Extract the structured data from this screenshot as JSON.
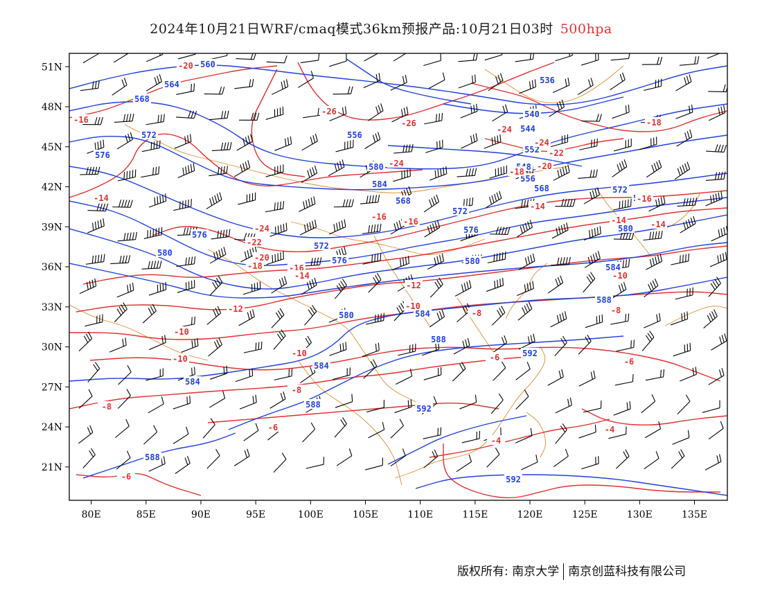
{
  "title": {
    "main": "2024年10月21日WRF/cmaq模式36km预报产品:10月21日03时",
    "level": "500hpa"
  },
  "colors": {
    "height_contour": "#1f3fdd",
    "temperature_contour": "#e03030",
    "boundary": "#e08a2a",
    "wind_barb": "#000000",
    "frame": "#000000"
  },
  "axes": {
    "lon_range": [
      78,
      138
    ],
    "lat_range": [
      18.5,
      52
    ],
    "x_ticks": [
      "80E",
      "85E",
      "90E",
      "95E",
      "100E",
      "105E",
      "110E",
      "115E",
      "120E",
      "125E",
      "130E",
      "135E"
    ],
    "y_ticks": [
      "51N",
      "48N",
      "45N",
      "42N",
      "39N",
      "36N",
      "33N",
      "30N",
      "27N",
      "24N",
      "21N"
    ]
  },
  "height_labels": [
    "560",
    "564",
    "568",
    "572",
    "576",
    "580",
    "584",
    "588",
    "592",
    "536",
    "540",
    "544",
    "548",
    "552",
    "556"
  ],
  "temperature_labels": [
    "-20",
    "-16",
    "-14",
    "-24",
    "-26",
    "-22",
    "-18",
    "-12",
    "-10",
    "-8",
    "-6",
    "-4"
  ],
  "footer": {
    "copyright": "版权所有: 南京大学",
    "company": "南京创蓝科技有限公司"
  }
}
